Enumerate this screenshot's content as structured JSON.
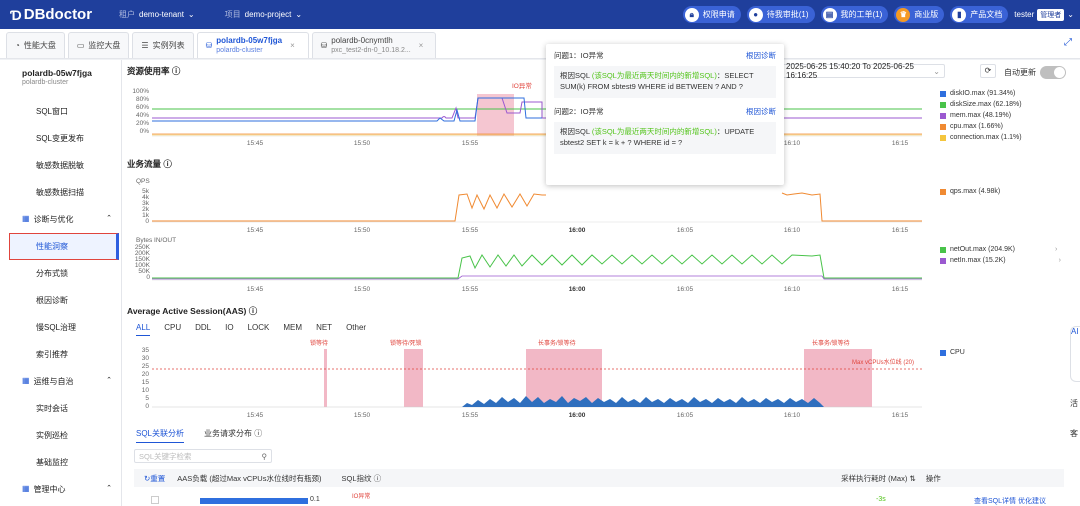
{
  "app": {
    "logo": "DBdoctor",
    "tenant_label": "租户",
    "tenant": "demo-tenant",
    "project_label": "项目",
    "project": "demo-project"
  },
  "top_actions": [
    {
      "label": "权限申请",
      "icon": "lock-icon"
    },
    {
      "label": "待我审批(1)",
      "icon": "user-icon"
    },
    {
      "label": "我的工单(1)",
      "icon": "document-icon"
    },
    {
      "label": "商业版",
      "icon": "crown-icon"
    },
    {
      "label": "产品文档",
      "icon": "book-icon"
    }
  ],
  "user": {
    "name": "tester",
    "role": "管理者"
  },
  "tabs": [
    {
      "label": "性能大盘"
    },
    {
      "label": "监控大盘"
    },
    {
      "label": "实例列表"
    },
    {
      "label": "polardb-05w7fjga",
      "sub": "polardb-cluster"
    },
    {
      "label": "polardb-0cnymtlh",
      "sub": "pxc_test2-dn-0_10.18.2..."
    }
  ],
  "sidebar": {
    "instance": "polardb-05w7fjga",
    "instance_type": "polardb-cluster",
    "items": [
      "SQL窗口",
      "SQL变更发布",
      "敏感数据脱敏",
      "敏感数据扫描"
    ],
    "group1": "诊断与优化",
    "group1_items": [
      "性能洞察",
      "分布式锁",
      "根因诊断",
      "慢SQL治理",
      "索引推荐"
    ],
    "group2": "运维与自治",
    "group2_items": [
      "实时会话",
      "实例巡检",
      "基础监控"
    ],
    "group3": "管理中心"
  },
  "resource": {
    "title": "资源使用率",
    "time_range": "2025-06-25 15:40:20 To 2025-06-25 16:16:25",
    "auto_refresh": "自动更新",
    "yticks": [
      "100%",
      "80%",
      "60%",
      "40%",
      "20%",
      "0%"
    ],
    "xticks": [
      "15:45",
      "15:50",
      "15:55",
      "16:00",
      "16:05",
      "16:10",
      "16:15"
    ],
    "anomaly": "IO异常",
    "legend": [
      {
        "label": "diskIO.max (91.34%)",
        "color": "#2f6fde"
      },
      {
        "label": "diskSize.max (62.18%)",
        "color": "#49c34a"
      },
      {
        "label": "mem.max (48.19%)",
        "color": "#9b59d0"
      },
      {
        "label": "cpu.max (1.66%)",
        "color": "#f08a32"
      },
      {
        "label": "connection.max (1.1%)",
        "color": "#f4c53d"
      }
    ]
  },
  "traffic": {
    "title": "业务流量",
    "qps_label": "QPS",
    "qps_ticks": [
      "5k",
      "4k",
      "3k",
      "2k",
      "1k",
      "0"
    ],
    "io_label": "Bytes IN/OUT",
    "io_ticks": [
      "250K",
      "200K",
      "150K",
      "100K",
      "50K",
      "0"
    ],
    "qps_legend": [
      {
        "label": "qps.max (4.98k)",
        "color": "#f08a32"
      }
    ],
    "io_legend": [
      {
        "label": "netOut.max (204.9K)",
        "color": "#49c34a"
      },
      {
        "label": "netIn.max (15.2K)",
        "color": "#9b59d0"
      }
    ]
  },
  "aas": {
    "title": "Average Active Session(AAS)",
    "tabs": [
      "ALL",
      "CPU",
      "DDL",
      "IO",
      "LOCK",
      "MEM",
      "NET",
      "Other"
    ],
    "yticks": [
      "35",
      "30",
      "25",
      "20",
      "15",
      "10",
      "5",
      "0"
    ],
    "max_line": "Max vCPUs水位线 (20)",
    "legend": "CPU",
    "annotations": [
      "锁等待",
      "锁等待/死锁",
      "长事务/锁等待",
      "长事务/锁等待"
    ]
  },
  "popup": {
    "issues": [
      {
        "title": "问题1：IO异常",
        "link": "根因诊断",
        "prefix": "根因SQL",
        "note": "(该SQL为最近两天时间内的新增SQL)",
        "sql": "：SELECT SUM(k) FROM sbtest9 WHERE id BETWEEN ? AND ?"
      },
      {
        "title": "问题2：IO异常",
        "link": "根因诊断",
        "prefix": "根因SQL",
        "note": "(该SQL为最近两天时间内的新增SQL)",
        "sql": "：UPDATE sbtest2 SET k = k + ? WHERE id = ?"
      }
    ]
  },
  "sql_tabs": [
    "SQL关联分析",
    "业务请求分布"
  ],
  "search_placeholder": "SQL关键字检索",
  "table": {
    "reset": "重置",
    "cols": [
      "AAS负载 (超过Max vCPUs水位线时有瓶颈)",
      "SQL指纹",
      "采样执行耗时 (Max)",
      "操作"
    ],
    "row_value": "0.1",
    "row_tag": "IO异常",
    "row_time": "-3s",
    "row_ops": "查看SQL详情  优化建议"
  },
  "float_buttons": [
    "AI",
    "活",
    "客"
  ]
}
